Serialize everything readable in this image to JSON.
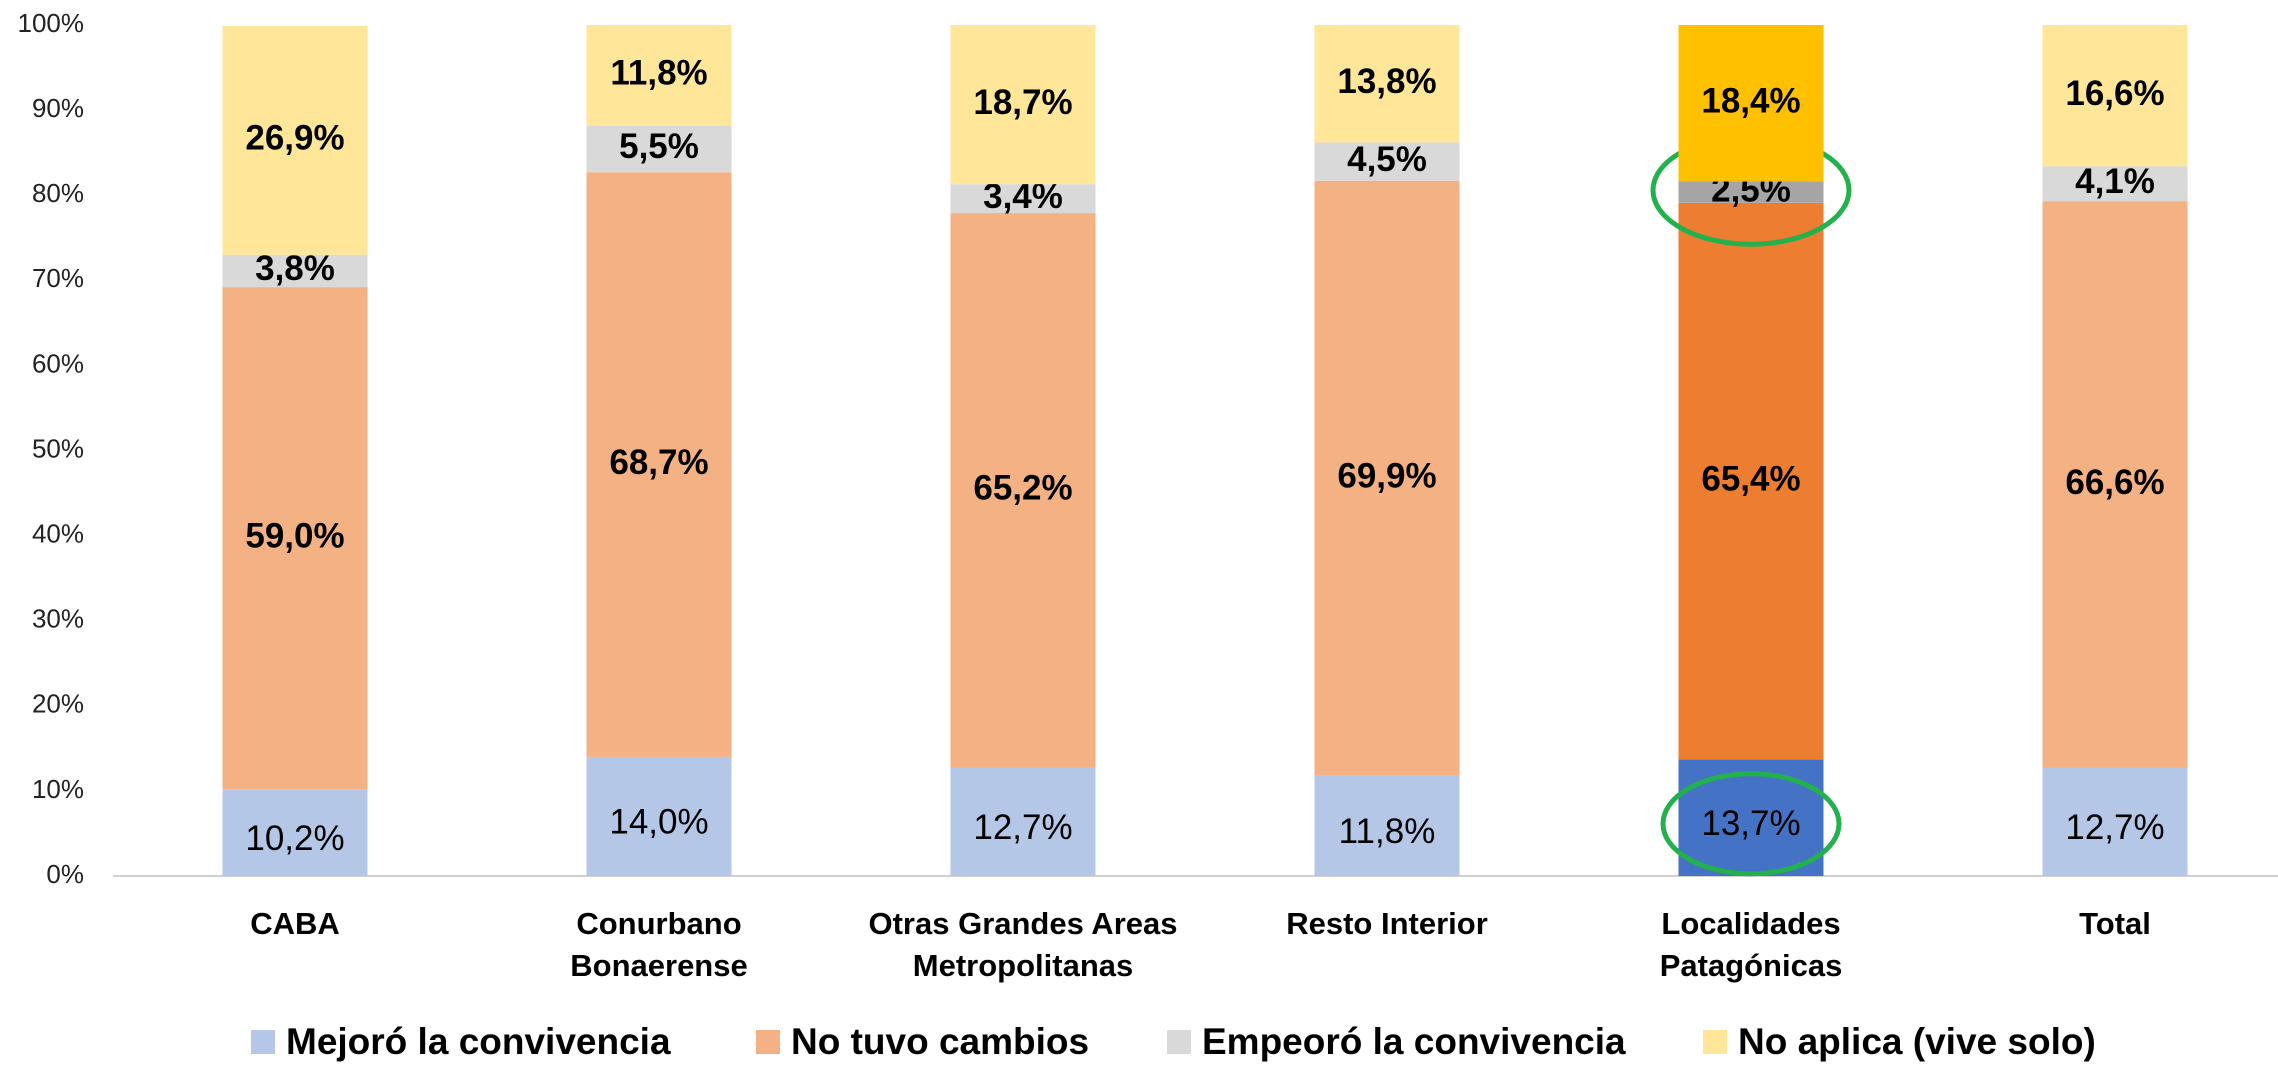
{
  "chart_data": {
    "type": "stacked_bar",
    "categories": [
      "CABA",
      "Conurbano Bonaerense",
      "Otras Grandes Areas Metropolitanas",
      "Resto Interior",
      "Localidades Patagónicas",
      "Total"
    ],
    "highlight_category": 4,
    "series": [
      {
        "name": "Mejoró la convivencia",
        "color": "#b4c7e7",
        "highlight_color": "#4472c4",
        "values": [
          10.2,
          14.0,
          12.7,
          11.8,
          13.7,
          12.7
        ],
        "value_labels": [
          "10,2%",
          "14,0%",
          "12,7%",
          "11,8%",
          "13,7%",
          "12,7%"
        ]
      },
      {
        "name": "No tuvo cambios",
        "color": "#f4b183",
        "highlight_color": "#ed7d31",
        "values": [
          59.0,
          68.7,
          65.2,
          69.9,
          65.4,
          66.6
        ],
        "value_labels": [
          "59,0%",
          "68,7%",
          "65,2%",
          "69,9%",
          "65,4%",
          "66,6%"
        ]
      },
      {
        "name": "Empeoró la convivencia",
        "color": "#d9d9d9",
        "highlight_color": "#a5a5a5",
        "values": [
          3.8,
          5.5,
          3.4,
          4.5,
          2.5,
          4.1
        ],
        "value_labels": [
          "3,8%",
          "5,5%",
          "3,4%",
          "4,5%",
          "2,5%",
          "4,1%"
        ]
      },
      {
        "name": "No aplica (vive solo)",
        "color": "#ffe699",
        "highlight_color": "#ffc000",
        "values": [
          26.9,
          11.8,
          18.7,
          13.8,
          18.4,
          16.6
        ],
        "value_labels": [
          "26,9%",
          "11,8%",
          "18,7%",
          "13,8%",
          "18,4%",
          "16,6%"
        ]
      }
    ],
    "ylim": [
      0,
      100
    ],
    "yticks": [
      {
        "value": 0,
        "label": "0%"
      },
      {
        "value": 10,
        "label": "10%"
      },
      {
        "value": 20,
        "label": "20%"
      },
      {
        "value": 30,
        "label": "30%"
      },
      {
        "value": 40,
        "label": "40%"
      },
      {
        "value": 50,
        "label": "50%"
      },
      {
        "value": 60,
        "label": "60%"
      },
      {
        "value": 70,
        "label": "70%"
      },
      {
        "value": 80,
        "label": "80%"
      },
      {
        "value": 90,
        "label": "90%"
      },
      {
        "value": 100,
        "label": "100%"
      }
    ],
    "legend": "bottom"
  }
}
